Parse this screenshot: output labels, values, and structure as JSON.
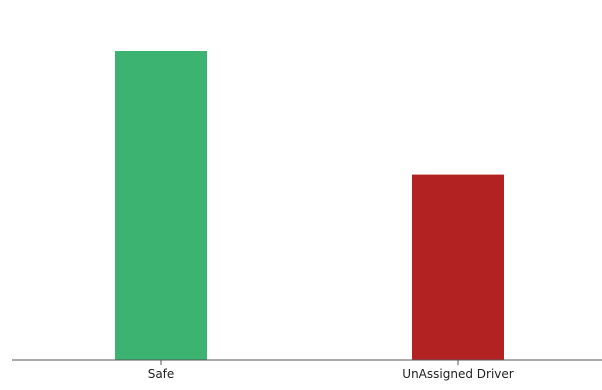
{
  "chart_data": {
    "type": "bar",
    "categories": [
      "Safe",
      "UnAssigned Driver"
    ],
    "values": [
      100,
      60
    ],
    "ylim": [
      0,
      100
    ],
    "colors": [
      "#3cb371",
      "#b22222"
    ],
    "axis_color": "#555555",
    "grid": false,
    "legend": "none"
  }
}
